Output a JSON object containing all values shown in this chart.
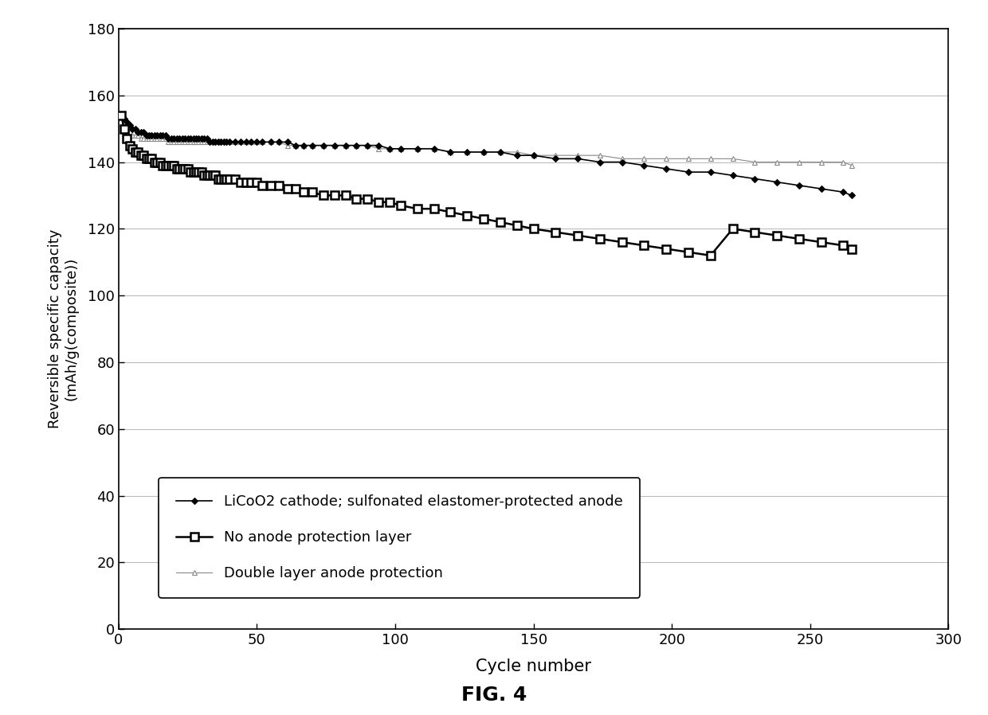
{
  "title": "FIG. 4",
  "xlabel": "Cycle number",
  "ylabel": "Reversible specific capacity\n(mAh/g(composite))",
  "xlim": [
    0,
    300
  ],
  "ylim": [
    0,
    180
  ],
  "xticks": [
    0,
    50,
    100,
    150,
    200,
    250,
    300
  ],
  "yticks": [
    0,
    20,
    40,
    60,
    80,
    100,
    120,
    140,
    160,
    180
  ],
  "series1_label": "LiCoO2 cathode; sulfonated elastomer-protected anode",
  "series2_label": "No anode protection layer",
  "series3_label": "Double layer anode protection",
  "series1_x": [
    1,
    2,
    3,
    4,
    5,
    6,
    7,
    8,
    9,
    10,
    11,
    12,
    13,
    14,
    15,
    16,
    17,
    18,
    19,
    20,
    21,
    22,
    23,
    24,
    25,
    26,
    27,
    28,
    29,
    30,
    31,
    32,
    33,
    34,
    35,
    36,
    37,
    38,
    39,
    40,
    42,
    44,
    46,
    48,
    50,
    52,
    55,
    58,
    61,
    64,
    67,
    70,
    74,
    78,
    82,
    86,
    90,
    94,
    98,
    102,
    108,
    114,
    120,
    126,
    132,
    138,
    144,
    150,
    158,
    166,
    174,
    182,
    190,
    198,
    206,
    214,
    222,
    230,
    238,
    246,
    254,
    262,
    265
  ],
  "series1_y": [
    154,
    153,
    152,
    151,
    150,
    150,
    149,
    149,
    149,
    148,
    148,
    148,
    148,
    148,
    148,
    148,
    148,
    147,
    147,
    147,
    147,
    147,
    147,
    147,
    147,
    147,
    147,
    147,
    147,
    147,
    147,
    147,
    146,
    146,
    146,
    146,
    146,
    146,
    146,
    146,
    146,
    146,
    146,
    146,
    146,
    146,
    146,
    146,
    146,
    145,
    145,
    145,
    145,
    145,
    145,
    145,
    145,
    145,
    144,
    144,
    144,
    144,
    143,
    143,
    143,
    143,
    142,
    142,
    141,
    141,
    140,
    140,
    139,
    138,
    137,
    137,
    136,
    135,
    134,
    133,
    132,
    131,
    130
  ],
  "series2_x": [
    1,
    2,
    3,
    4,
    5,
    6,
    7,
    8,
    9,
    10,
    11,
    12,
    13,
    14,
    15,
    16,
    17,
    18,
    19,
    20,
    21,
    22,
    23,
    24,
    25,
    26,
    27,
    28,
    29,
    30,
    31,
    32,
    33,
    34,
    35,
    36,
    37,
    38,
    39,
    40,
    42,
    44,
    46,
    48,
    50,
    52,
    55,
    58,
    61,
    64,
    67,
    70,
    74,
    78,
    82,
    86,
    90,
    94,
    98,
    102,
    108,
    114,
    120,
    126,
    132,
    138,
    144,
    150,
    158,
    166,
    174,
    182,
    190,
    198,
    206,
    214,
    222,
    230,
    238,
    246,
    254,
    262,
    265
  ],
  "series2_y": [
    154,
    150,
    147,
    145,
    144,
    143,
    143,
    142,
    142,
    141,
    141,
    141,
    140,
    140,
    140,
    139,
    139,
    139,
    139,
    139,
    138,
    138,
    138,
    138,
    138,
    137,
    137,
    137,
    137,
    137,
    136,
    136,
    136,
    136,
    136,
    135,
    135,
    135,
    135,
    135,
    135,
    134,
    134,
    134,
    134,
    133,
    133,
    133,
    132,
    132,
    131,
    131,
    130,
    130,
    130,
    129,
    129,
    128,
    128,
    127,
    126,
    126,
    125,
    124,
    123,
    122,
    121,
    120,
    119,
    118,
    117,
    116,
    115,
    114,
    113,
    112,
    120,
    119,
    118,
    117,
    116,
    115,
    114
  ],
  "series3_x": [
    1,
    2,
    3,
    4,
    5,
    6,
    7,
    8,
    9,
    10,
    11,
    12,
    13,
    14,
    15,
    16,
    17,
    18,
    19,
    20,
    21,
    22,
    23,
    24,
    25,
    26,
    27,
    28,
    29,
    30,
    31,
    32,
    33,
    34,
    35,
    36,
    37,
    38,
    39,
    40,
    42,
    44,
    46,
    48,
    50,
    52,
    55,
    58,
    61,
    64,
    67,
    70,
    74,
    78,
    82,
    86,
    90,
    94,
    98,
    102,
    108,
    114,
    120,
    126,
    132,
    138,
    144,
    150,
    158,
    166,
    174,
    182,
    190,
    198,
    206,
    214,
    222,
    230,
    238,
    246,
    254,
    262,
    265
  ],
  "series3_y": [
    154,
    152,
    150,
    149,
    148,
    148,
    148,
    147,
    147,
    147,
    147,
    147,
    147,
    147,
    147,
    147,
    147,
    146,
    146,
    146,
    146,
    146,
    146,
    146,
    146,
    146,
    146,
    146,
    146,
    146,
    146,
    146,
    146,
    146,
    146,
    146,
    146,
    146,
    146,
    146,
    146,
    146,
    146,
    146,
    146,
    146,
    146,
    146,
    145,
    145,
    145,
    145,
    145,
    145,
    145,
    145,
    145,
    144,
    144,
    144,
    144,
    144,
    143,
    143,
    143,
    143,
    143,
    142,
    142,
    142,
    142,
    141,
    141,
    141,
    141,
    141,
    141,
    140,
    140,
    140,
    140,
    140,
    139
  ],
  "background_color": "#ffffff",
  "line_color": "#000000",
  "series3_color": "#888888",
  "marker1": "D",
  "marker2": "s",
  "marker3": "^"
}
